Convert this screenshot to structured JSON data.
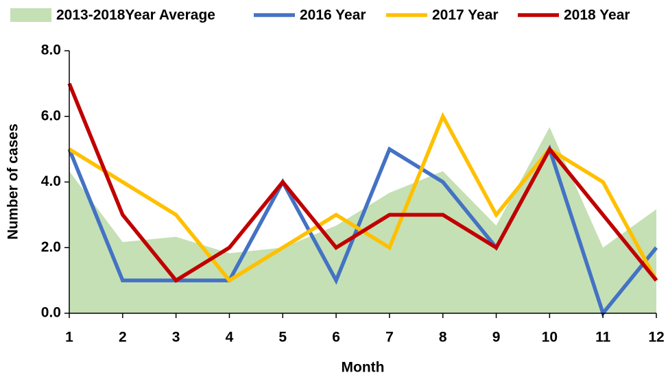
{
  "chart_data": {
    "type": "line",
    "xlabel": "Month",
    "ylabel": "Number of cases",
    "x": [
      1,
      2,
      3,
      4,
      5,
      6,
      7,
      8,
      9,
      10,
      11,
      12
    ],
    "xlim": [
      1,
      12
    ],
    "xticks": [
      1,
      2,
      3,
      4,
      5,
      6,
      7,
      8,
      9,
      10,
      11,
      12
    ],
    "ylim": [
      0,
      8
    ],
    "yticks": [
      {
        "value": 0,
        "label": "0.0"
      },
      {
        "value": 2,
        "label": "2.0"
      },
      {
        "value": 4,
        "label": "4.0"
      },
      {
        "value": 6,
        "label": "6.0"
      },
      {
        "value": 8,
        "label": "8.0"
      }
    ],
    "legend": "top",
    "series": [
      {
        "name": "2013-2018Year Average",
        "color": "#c5e0b4",
        "kind": "area",
        "values": [
          4.33,
          2.17,
          2.33,
          1.83,
          2.0,
          2.67,
          3.67,
          4.33,
          2.67,
          5.67,
          2.0,
          3.17
        ]
      },
      {
        "name": "2016 Year",
        "color": "#4472c4",
        "kind": "line",
        "values": [
          5,
          1,
          1,
          1,
          4,
          1,
          5,
          4,
          2,
          5,
          0,
          2
        ]
      },
      {
        "name": "2017 Year",
        "color": "#ffc000",
        "kind": "line",
        "values": [
          5,
          4,
          3,
          1,
          2,
          3,
          2,
          6,
          3,
          5,
          4,
          1
        ]
      },
      {
        "name": "2018 Year",
        "color": "#c00000",
        "kind": "line",
        "values": [
          7,
          3,
          1,
          2,
          4,
          2,
          3,
          3,
          2,
          5,
          3,
          1
        ]
      }
    ]
  }
}
